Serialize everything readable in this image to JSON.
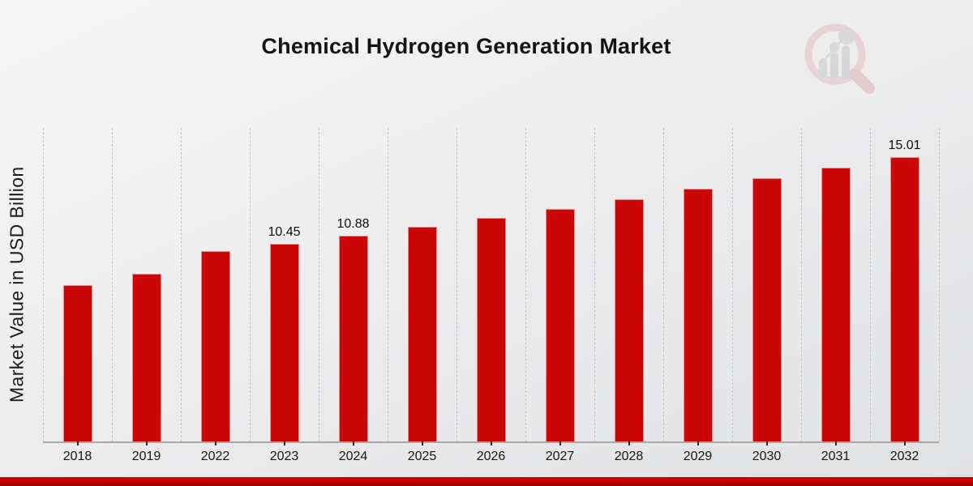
{
  "chart_data": {
    "type": "bar",
    "title": "Chemical Hydrogen Generation Market",
    "ylabel": "Market Value in USD Billion",
    "xlabel": "",
    "categories": [
      "2018",
      "2019",
      "2022",
      "2023",
      "2024",
      "2025",
      "2026",
      "2027",
      "2028",
      "2029",
      "2030",
      "2031",
      "2032"
    ],
    "values": [
      8.25,
      8.85,
      10.05,
      10.45,
      10.88,
      11.32,
      11.8,
      12.29,
      12.8,
      13.33,
      13.88,
      14.45,
      15.01
    ],
    "bar_labels": [
      "",
      "",
      "",
      "10.45",
      "10.88",
      "",
      "",
      "",
      "",
      "",
      "",
      "",
      "15.01"
    ],
    "ylim": [
      0,
      16.55
    ],
    "grid": "vertical-dashed",
    "legend_position": "none",
    "bar_color": "#cb0606",
    "label_color": "#0e0e0e"
  },
  "branding": {
    "watermark_icon": "market-research-future-magnifier-logo",
    "watermark_ring_color": "#e3bec4",
    "watermark_bar_color": "#c6c7c9",
    "accent_bar_color_top": "#cf0101",
    "accent_bar_color_bottom": "#8f0000"
  }
}
